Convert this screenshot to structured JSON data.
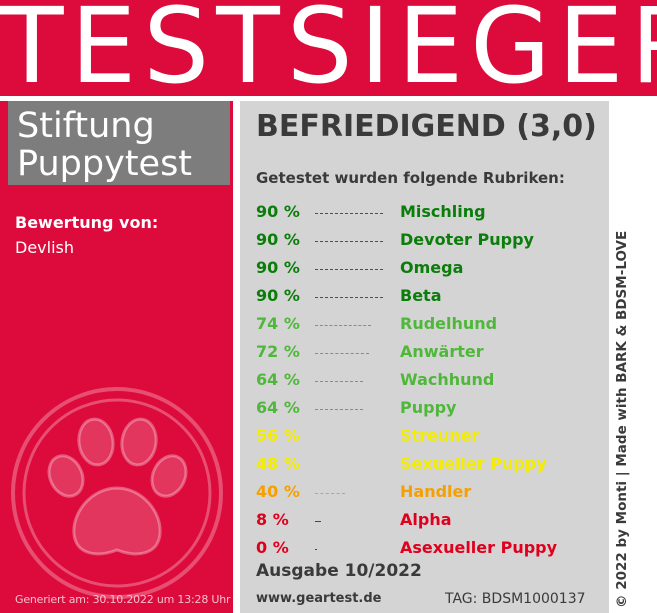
{
  "header": {
    "title": "TESTSIEGER"
  },
  "brand": {
    "line1": "Stiftung",
    "line2": "Puppytest"
  },
  "review": {
    "label": "Bewertung von:",
    "reviewer": "Devlish"
  },
  "generated": "Generiert am: 30.10.2022 um 13:28 Uhr",
  "verdict": "BEFRIEDIGEND (3,0)",
  "rubric_intro": "Getestet wurden folgende Rubriken:",
  "rubrics": [
    {
      "percent": "90 %",
      "value": 90,
      "name": "Mischling",
      "color": "#0a7d0a"
    },
    {
      "percent": "90 %",
      "value": 90,
      "name": "Devoter Puppy",
      "color": "#0a7d0a"
    },
    {
      "percent": "90 %",
      "value": 90,
      "name": "Omega",
      "color": "#0a7d0a"
    },
    {
      "percent": "90 %",
      "value": 90,
      "name": "Beta",
      "color": "#0a7d0a"
    },
    {
      "percent": "74 %",
      "value": 74,
      "name": "Rudelhund",
      "color": "#4fb83a"
    },
    {
      "percent": "72 %",
      "value": 72,
      "name": "Anwärter",
      "color": "#4fb83a"
    },
    {
      "percent": "64 %",
      "value": 64,
      "name": "Wachhund",
      "color": "#4fb83a"
    },
    {
      "percent": "64 %",
      "value": 64,
      "name": "Puppy",
      "color": "#4fb83a"
    },
    {
      "percent": "56 %",
      "value": 56,
      "name": "Streuner",
      "color": "#f5ed00"
    },
    {
      "percent": "48 %",
      "value": 48,
      "name": "Sexueller Puppy",
      "color": "#f5ed00"
    },
    {
      "percent": "40 %",
      "value": 40,
      "name": "Handler",
      "color": "#f5a000"
    },
    {
      "percent": "8 %",
      "value": 8,
      "name": "Alpha",
      "color": "#e0001e"
    },
    {
      "percent": "0 %",
      "value": 0,
      "name": "Asexueller Puppy",
      "color": "#e0001e"
    }
  ],
  "issue": "Ausgabe 10/2022",
  "site": "www.geartest.de",
  "tag": "TAG: BDSM1000137",
  "copyright": "© 2022 by Monti | Made with BARK & BDSM-LOVE",
  "icons": {
    "paw": "paw-icon"
  },
  "colors": {
    "red": "#dd0a3c",
    "grey": "#7d7d7d",
    "panel": "#d4d4d4"
  }
}
